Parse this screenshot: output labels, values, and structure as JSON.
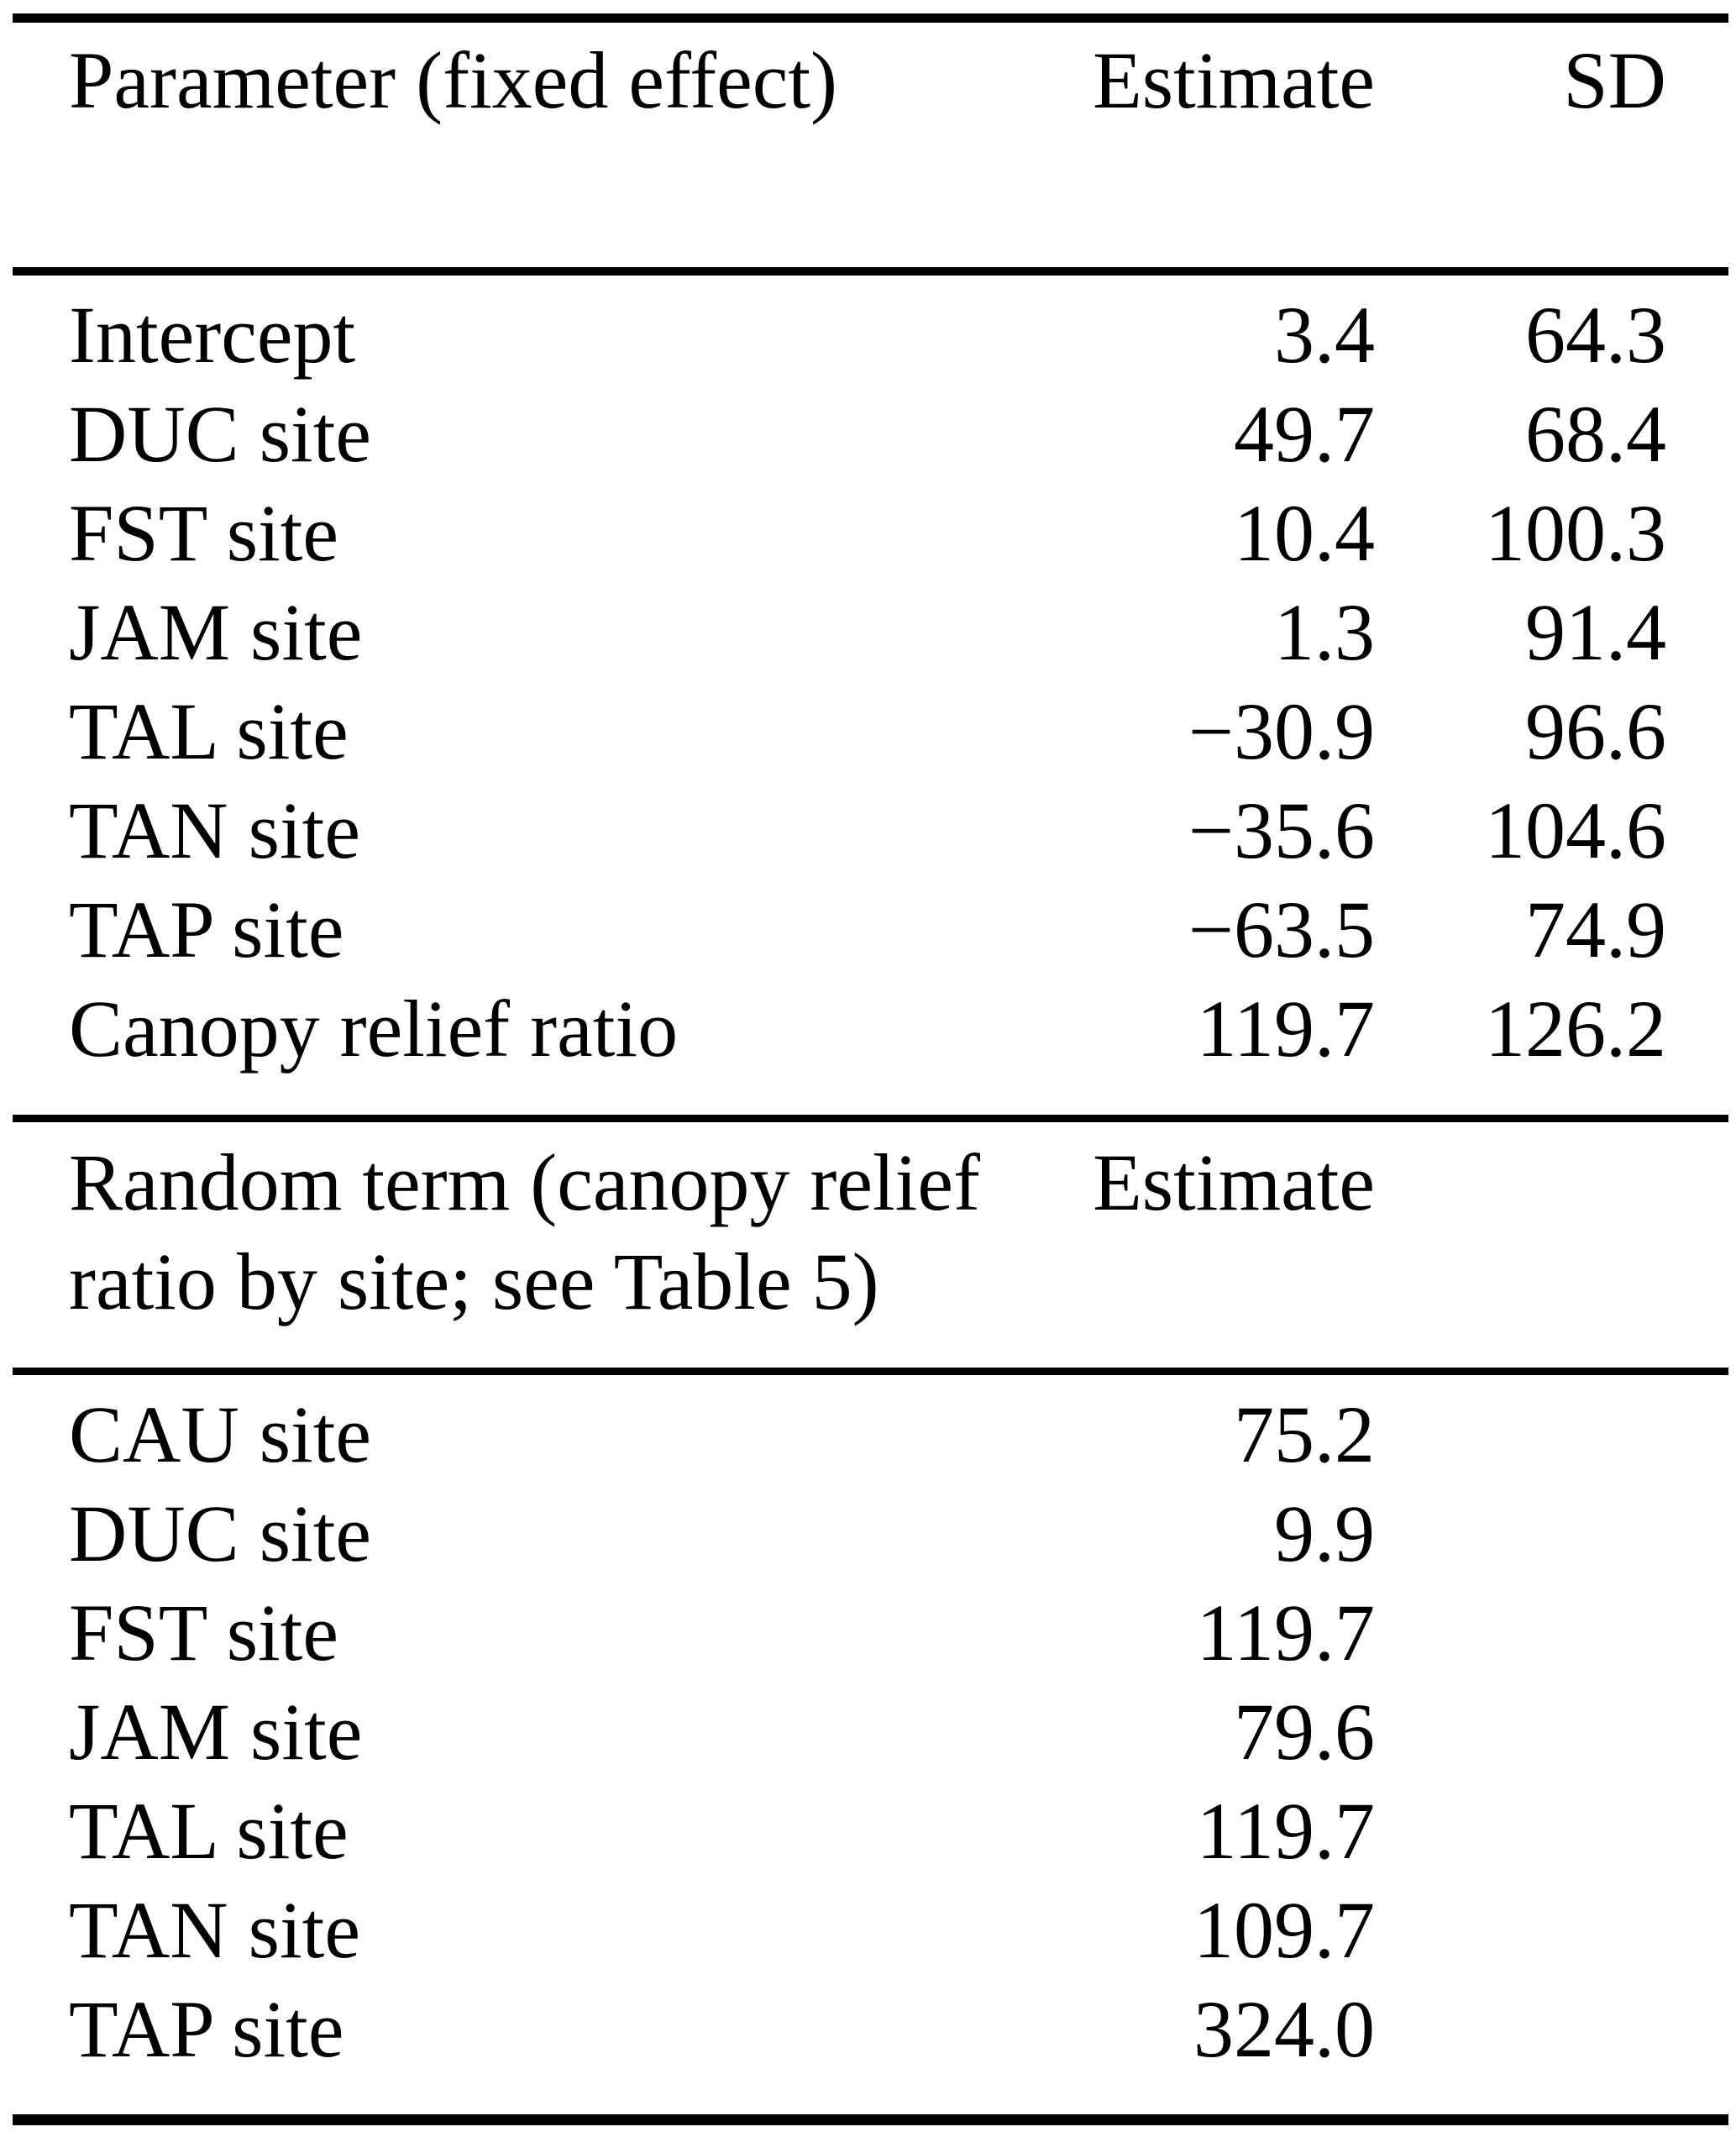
{
  "page": {
    "background_color": "#ffffff",
    "text_color": "#000000"
  },
  "fixed_effects": {
    "headers": {
      "parameter": "Parameter (fixed effect)",
      "estimate": "Estimate",
      "sd": "SD"
    },
    "rows": [
      {
        "label": "Intercept",
        "estimate": "3.4",
        "sd": "64.3"
      },
      {
        "label": "DUC site",
        "estimate": "49.7",
        "sd": "68.4"
      },
      {
        "label": "FST site",
        "estimate": "10.4",
        "sd": "100.3"
      },
      {
        "label": "JAM site",
        "estimate": "1.3",
        "sd": "91.4"
      },
      {
        "label": "TAL site",
        "estimate": "−30.9",
        "sd": "96.6"
      },
      {
        "label": "TAN site",
        "estimate": "−35.6",
        "sd": "104.6"
      },
      {
        "label": "TAP site",
        "estimate": "−63.5",
        "sd": "74.9"
      },
      {
        "label": "Canopy relief ratio",
        "estimate": "119.7",
        "sd": "126.2"
      }
    ]
  },
  "random_term": {
    "headers": {
      "term_line1": "Random term (canopy relief",
      "term_line2": "ratio by site; see Table 5)",
      "estimate": "Estimate"
    },
    "rows": [
      {
        "label": "CAU site",
        "estimate": "75.2"
      },
      {
        "label": "DUC site",
        "estimate": "9.9"
      },
      {
        "label": "FST site",
        "estimate": "119.7"
      },
      {
        "label": "JAM site",
        "estimate": "79.6"
      },
      {
        "label": "TAL site",
        "estimate": "119.7"
      },
      {
        "label": "TAN site",
        "estimate": "109.7"
      },
      {
        "label": "TAP site",
        "estimate": "324.0"
      }
    ]
  }
}
